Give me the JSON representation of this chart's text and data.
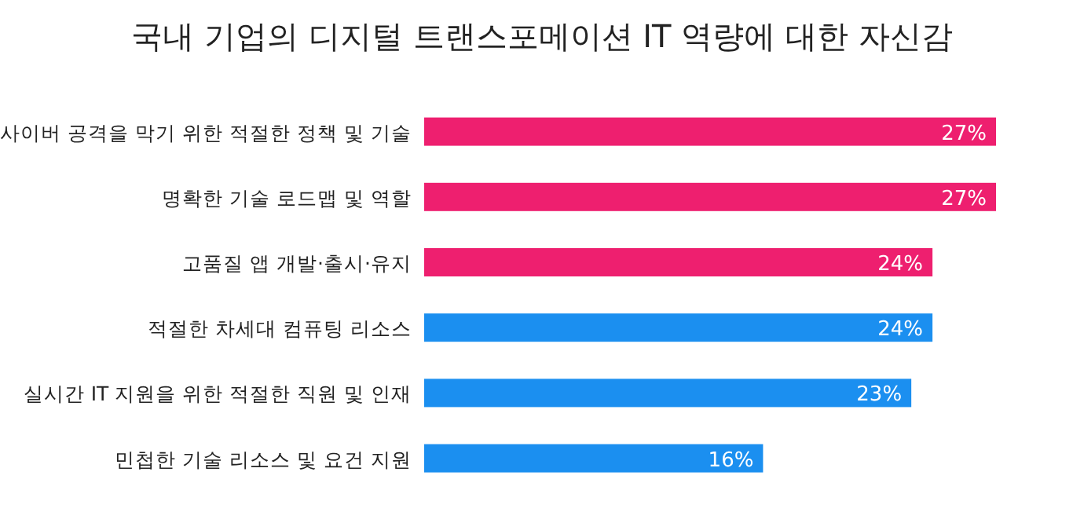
{
  "chart_data": {
    "type": "bar",
    "orientation": "horizontal",
    "title": "국내 기업의 디지털 트랜스포메이션 IT 역량에 대한 자신감",
    "categories": [
      "사이버 공격을 막기 위한 적절한 정책 및 기술",
      "명확한 기술 로드맵 및 역할",
      "고품질 앱 개발·출시·유지",
      "적절한 차세대 컴퓨팅 리소스",
      "실시간 IT 지원을 위한 적절한 직원 및 인재",
      "민첩한 기술 리소스 및 요건 지원"
    ],
    "values": [
      27,
      27,
      24,
      24,
      23,
      16
    ],
    "colors": [
      "#ee1f6f",
      "#ee1f6f",
      "#ee1f6f",
      "#1b8ff0",
      "#1b8ff0",
      "#1b8ff0"
    ],
    "value_labels": [
      "27%",
      "27%",
      "24%",
      "24%",
      "23%",
      "16%"
    ]
  }
}
